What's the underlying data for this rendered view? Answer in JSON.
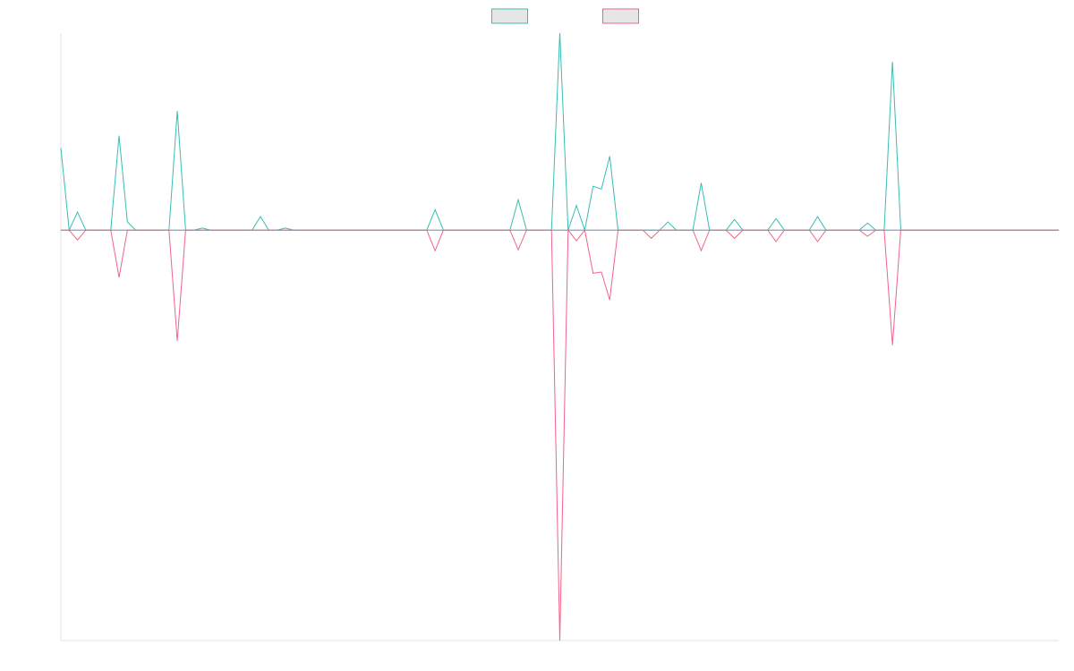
{
  "chart_data": {
    "type": "line",
    "ylim": [
      -100,
      48
    ],
    "legend": "top",
    "series": [
      {
        "color": "#38bdb3",
        "values": [
          20,
          0,
          4.4,
          0,
          0,
          0,
          0,
          23,
          2,
          0,
          0,
          0,
          0,
          0,
          29,
          0,
          0,
          0.5,
          0,
          0,
          0,
          0,
          0,
          0,
          3.3,
          0,
          0,
          0.5,
          0,
          0,
          0,
          0,
          0,
          0,
          0,
          0,
          0,
          0,
          0,
          0,
          0,
          0,
          0,
          0,
          0,
          5,
          0,
          0,
          0,
          0,
          0,
          0,
          0,
          0,
          0,
          7.4,
          0,
          0,
          0,
          0,
          48,
          0,
          6,
          0,
          10.7,
          10,
          18,
          0,
          0,
          0,
          0,
          0,
          0,
          2,
          0,
          0,
          0,
          11.5,
          0,
          0,
          0,
          2.6,
          0,
          0,
          0,
          0,
          2.8,
          0,
          0,
          0,
          0,
          3.3,
          0,
          0,
          0,
          0,
          0,
          1.7,
          0,
          0,
          41,
          0,
          0,
          0,
          0,
          0,
          0,
          0,
          0,
          0,
          0,
          0,
          0,
          0,
          0,
          0,
          0,
          0,
          0,
          0,
          0
        ]
      },
      {
        "color": "#f0648a",
        "values": [
          0,
          0,
          -2.4,
          0,
          0,
          0,
          0,
          -11.5,
          0,
          0,
          0,
          0,
          0,
          0,
          -27,
          0,
          0,
          0,
          0,
          0,
          0,
          0,
          0,
          0,
          0,
          0,
          0,
          0,
          0,
          0,
          0,
          0,
          0,
          0,
          0,
          0,
          0,
          0,
          0,
          0,
          0,
          0,
          0,
          0,
          0,
          -5,
          0,
          0,
          0,
          0,
          0,
          0,
          0,
          0,
          0,
          -4.8,
          0,
          0,
          0,
          0,
          -100,
          0,
          -2.6,
          0,
          -10.5,
          -10.2,
          -17,
          0,
          0,
          0,
          0,
          -2,
          0,
          0,
          0,
          0,
          0,
          -5,
          0,
          0,
          0,
          -2,
          0,
          0,
          0,
          0,
          -2.8,
          0,
          0,
          0,
          0,
          -2.8,
          0,
          0,
          0,
          0,
          0,
          -1.5,
          0,
          0,
          -28,
          0,
          0,
          0,
          0,
          0,
          0,
          0,
          0,
          0,
          0,
          0,
          0,
          0,
          0,
          0,
          0,
          0,
          0,
          0,
          0
        ]
      }
    ]
  }
}
